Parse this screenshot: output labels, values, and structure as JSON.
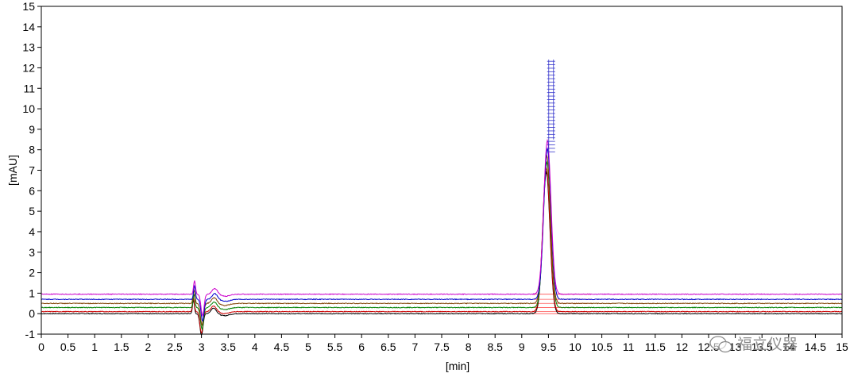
{
  "chart_data": {
    "type": "line",
    "xlabel": "[min]",
    "ylabel": "[mAU]",
    "xlim": [
      0,
      15
    ],
    "ylim": [
      -1,
      15
    ],
    "grid": false,
    "x_ticks": [
      0,
      0.5,
      1,
      1.5,
      2,
      2.5,
      3,
      3.5,
      4,
      4.5,
      5,
      5.5,
      6,
      6.5,
      7,
      7.5,
      8,
      8.5,
      9,
      9.5,
      10,
      10.5,
      11,
      11.5,
      12,
      12.5,
      13,
      13.5,
      14,
      14.5,
      15
    ],
    "y_ticks": [
      -1,
      0,
      1,
      2,
      3,
      4,
      5,
      6,
      7,
      8,
      9,
      10,
      11,
      12,
      13,
      14,
      15
    ],
    "series": [
      {
        "color": "#000000",
        "baseline": 0.0,
        "peak_time": 9.46,
        "peak_height": 6.9,
        "system_peak_time": 2.85
      },
      {
        "color": "#cc0000",
        "baseline": 0.1,
        "peak_time": 9.46,
        "peak_height": 7.0,
        "system_peak_time": 2.85
      },
      {
        "color": "#008000",
        "baseline": 0.3,
        "peak_time": 9.47,
        "peak_height": 7.1,
        "system_peak_time": 2.86
      },
      {
        "color": "#7f4000",
        "baseline": 0.5,
        "peak_time": 9.47,
        "peak_height": 7.2,
        "system_peak_time": 2.86
      },
      {
        "color": "#0000cc",
        "baseline": 0.7,
        "peak_time": 9.48,
        "peak_height": 7.35,
        "system_peak_time": 2.87
      },
      {
        "color": "#cc00cc",
        "baseline": 0.95,
        "peak_time": 9.48,
        "peak_height": 7.5,
        "system_peak_time": 2.87
      }
    ],
    "peak_marker": {
      "color": "#3333cc",
      "x": 9.55,
      "y_range": [
        7.9,
        12.4
      ]
    },
    "integration_baseline": {
      "color": "#ff3333",
      "x_range": [
        9.2,
        10.3
      ]
    }
  },
  "watermark": {
    "text": "福立仪器",
    "icon": "wechat-icon"
  }
}
